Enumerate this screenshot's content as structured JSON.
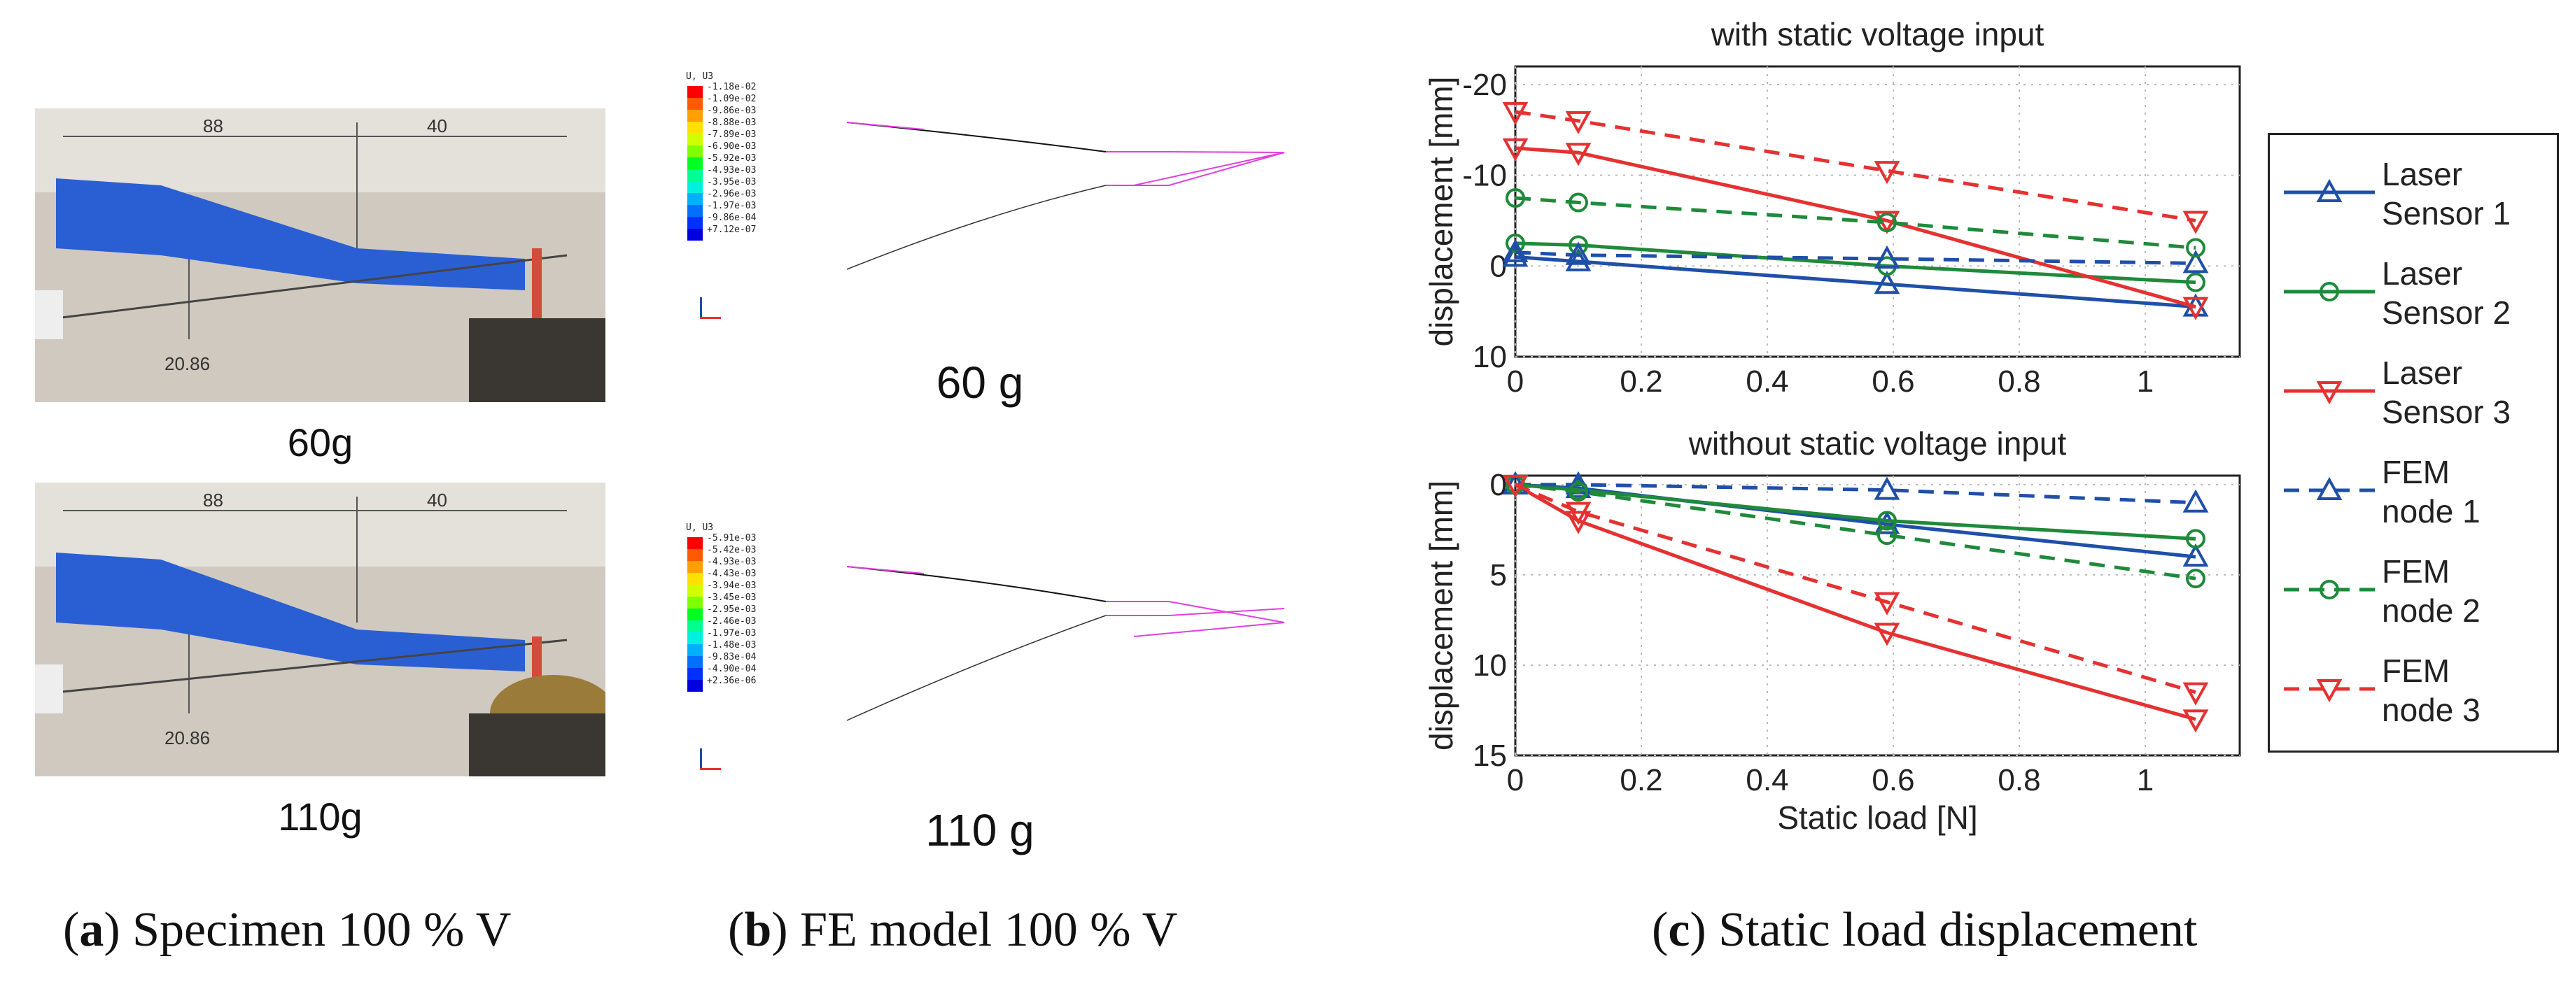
{
  "panel_a": {
    "caption_letter": "a",
    "caption_text": "Specimen 100 % V",
    "photos": [
      {
        "label": "60g",
        "dim_top_1": "88",
        "dim_top_2": "40",
        "dim_side": "20.86"
      },
      {
        "label": "110g",
        "dim_top_1": "88",
        "dim_top_2": "40",
        "dim_side": "20.86"
      }
    ]
  },
  "panel_b": {
    "caption_letter": "b",
    "caption_text": "FE model 100 % V",
    "models": [
      {
        "label": "60 g",
        "legend_title": "U, U3",
        "legend_values": [
          "-1.18e-02",
          "-1.09e-02",
          "-9.86e-03",
          "-8.88e-03",
          "-7.89e-03",
          "-6.90e-03",
          "-5.92e-03",
          "-4.93e-03",
          "-3.95e-03",
          "-2.96e-03",
          "-1.97e-03",
          "-9.86e-04",
          "+7.12e-07"
        ]
      },
      {
        "label": "110 g",
        "legend_title": "U, U3",
        "legend_values": [
          "-5.91e-03",
          "-5.42e-03",
          "-4.93e-03",
          "-4.43e-03",
          "-3.94e-03",
          "-3.45e-03",
          "-2.95e-03",
          "-2.46e-03",
          "-1.97e-03",
          "-1.48e-03",
          "-9.83e-04",
          "-4.90e-04",
          "+2.36e-06"
        ]
      }
    ],
    "colorbar": [
      "#ff0000",
      "#ff5a00",
      "#ffa000",
      "#ffe000",
      "#d0ff00",
      "#80ff00",
      "#00ff20",
      "#00ff90",
      "#00f0e0",
      "#00b0ff",
      "#0070ff",
      "#0030ff",
      "#0000e0"
    ]
  },
  "panel_c": {
    "caption_letter": "c",
    "caption_text": "Static load displacement",
    "colors": {
      "blue": "#1f4fa8",
      "green": "#1e8a3a",
      "red": "#e53131"
    },
    "legend": [
      {
        "line1": "Laser",
        "line2": "Sensor 1",
        "color": "#1f4fa8",
        "dash": false,
        "marker": "triangle-up"
      },
      {
        "line1": "Laser",
        "line2": "Sensor 2",
        "color": "#1e8a3a",
        "dash": false,
        "marker": "circle"
      },
      {
        "line1": "Laser",
        "line2": "Sensor 3",
        "color": "#e53131",
        "dash": false,
        "marker": "triangle-down"
      },
      {
        "line1": "FEM",
        "line2": "node 1",
        "color": "#1f4fa8",
        "dash": true,
        "marker": "triangle-up"
      },
      {
        "line1": "FEM",
        "line2": "node 2",
        "color": "#1e8a3a",
        "dash": true,
        "marker": "circle"
      },
      {
        "line1": "FEM",
        "line2": "node 3",
        "color": "#e53131",
        "dash": true,
        "marker": "triangle-down"
      }
    ]
  },
  "chart_data": [
    {
      "type": "line",
      "title": "with static voltage input",
      "xlabel": "",
      "ylabel": "displacement [mm]",
      "xlim": [
        0,
        1.15
      ],
      "ylim": [
        10,
        -22
      ],
      "xticks": [
        "0",
        "0.2",
        "0.4",
        "0.6",
        "0.8",
        "1"
      ],
      "yticks": [
        "-20",
        "-10",
        "0",
        "10"
      ],
      "x": [
        0,
        0.1,
        0.59,
        1.08
      ],
      "series": [
        {
          "name": "Laser Sensor 1",
          "values": [
            -1.0,
            -0.5,
            2.0,
            4.5
          ]
        },
        {
          "name": "Laser Sensor 2",
          "values": [
            -2.5,
            -2.3,
            0.0,
            1.8
          ]
        },
        {
          "name": "Laser Sensor 3",
          "values": [
            -13.0,
            -12.5,
            -5.0,
            4.5
          ]
        },
        {
          "name": "FEM node 1",
          "values": [
            -1.5,
            -1.2,
            -0.8,
            -0.3
          ]
        },
        {
          "name": "FEM node 2",
          "values": [
            -7.5,
            -7.0,
            -4.8,
            -2.0
          ]
        },
        {
          "name": "FEM node 3",
          "values": [
            -17.0,
            -16.0,
            -10.5,
            -5.0
          ]
        }
      ]
    },
    {
      "type": "line",
      "title": "without static voltage input",
      "xlabel": "Static load [N]",
      "ylabel": "displacement [mm]",
      "xlim": [
        0,
        1.15
      ],
      "ylim": [
        15,
        -0.5
      ],
      "xticks": [
        "0",
        "0.2",
        "0.4",
        "0.6",
        "0.8",
        "1"
      ],
      "yticks": [
        "0",
        "5",
        "10",
        "15"
      ],
      "x": [
        0,
        0.1,
        0.59,
        1.08
      ],
      "series": [
        {
          "name": "Laser Sensor 1",
          "values": [
            0.0,
            0.2,
            2.2,
            4.0
          ]
        },
        {
          "name": "Laser Sensor 2",
          "values": [
            0.0,
            0.3,
            2.0,
            3.0
          ]
        },
        {
          "name": "Laser Sensor 3",
          "values": [
            0.0,
            2.0,
            8.2,
            13.0
          ]
        },
        {
          "name": "FEM node 1",
          "values": [
            0.0,
            0.0,
            0.3,
            1.0
          ]
        },
        {
          "name": "FEM node 2",
          "values": [
            0.0,
            0.4,
            2.8,
            5.2
          ]
        },
        {
          "name": "FEM node 3",
          "values": [
            0.0,
            1.5,
            6.5,
            11.5
          ]
        }
      ]
    }
  ]
}
